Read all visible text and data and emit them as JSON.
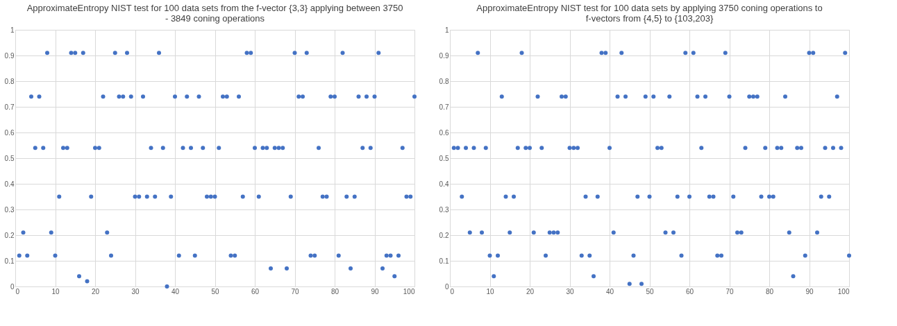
{
  "chart_data": [
    {
      "type": "scatter",
      "title": "ApproximateEntropy NIST test for 100 data sets from the f-vector {3,3} applying between 3750 - 3849 coning operations",
      "x": [
        1,
        2,
        3,
        4,
        5,
        6,
        7,
        8,
        9,
        10,
        11,
        12,
        13,
        14,
        15,
        16,
        17,
        18,
        19,
        20,
        21,
        22,
        23,
        24,
        25,
        26,
        27,
        28,
        29,
        30,
        31,
        32,
        33,
        34,
        35,
        36,
        37,
        38,
        39,
        40,
        41,
        42,
        43,
        44,
        45,
        46,
        47,
        48,
        49,
        50,
        51,
        52,
        53,
        54,
        55,
        56,
        57,
        58,
        59,
        60,
        61,
        62,
        63,
        64,
        65,
        66,
        67,
        68,
        69,
        70,
        71,
        72,
        73,
        74,
        75,
        76,
        77,
        78,
        79,
        80,
        81,
        82,
        83,
        84,
        85,
        86,
        87,
        88,
        89,
        90,
        91,
        92,
        93,
        94,
        95,
        96,
        97,
        98,
        99,
        100
      ],
      "series": [
        {
          "color": "#4472c4",
          "values": [
            0.12,
            0.21,
            0.12,
            0.74,
            0.54,
            0.74,
            0.54,
            0.91,
            0.21,
            0.12,
            0.35,
            0.54,
            0.54,
            0.91,
            0.91,
            0.04,
            0.91,
            0.02,
            0.35,
            0.54,
            0.54,
            0.74,
            0.21,
            0.12,
            0.91,
            0.74,
            0.74,
            0.91,
            0.74,
            0.35,
            0.35,
            0.74,
            0.35,
            0.54,
            0.35,
            0.91,
            0.54,
            0.0,
            0.35,
            0.74,
            0.12,
            0.54,
            0.74,
            0.54,
            0.12,
            0.74,
            0.54,
            0.35,
            0.35,
            0.35,
            0.54,
            0.74,
            0.74,
            0.12,
            0.12,
            0.74,
            0.35,
            0.91,
            0.91,
            0.54,
            0.35,
            0.54,
            0.54,
            0.07,
            0.54,
            0.54,
            0.54,
            0.07,
            0.35,
            0.91,
            0.74,
            0.74,
            0.91,
            0.12,
            0.12,
            0.54,
            0.35,
            0.35,
            0.74,
            0.74,
            0.12,
            0.91,
            0.35,
            0.07,
            0.35,
            0.74,
            0.54,
            0.74,
            0.54,
            0.74,
            0.91,
            0.07,
            0.12,
            0.12,
            0.04,
            0.12,
            0.54,
            0.35,
            0.35,
            0.74
          ]
        }
      ],
      "xlim": [
        0,
        100
      ],
      "xticks": [
        0,
        10,
        20,
        30,
        40,
        50,
        60,
        70,
        80,
        90,
        100
      ],
      "ylim": [
        0,
        1
      ],
      "yticks": [
        0,
        0.1,
        0.2,
        0.3,
        0.4,
        0.5,
        0.6,
        0.7,
        0.8,
        0.9,
        1
      ],
      "grid": true,
      "marker": "circle"
    },
    {
      "type": "scatter",
      "title": "ApproximateEntropy NIST test for 100 data sets by applying 3750 coning operations to f-vectors from {4,5} to {103,203}",
      "x": [
        1,
        2,
        3,
        4,
        5,
        6,
        7,
        8,
        9,
        10,
        11,
        12,
        13,
        14,
        15,
        16,
        17,
        18,
        19,
        20,
        21,
        22,
        23,
        24,
        25,
        26,
        27,
        28,
        29,
        30,
        31,
        32,
        33,
        34,
        35,
        36,
        37,
        38,
        39,
        40,
        41,
        42,
        43,
        44,
        45,
        46,
        47,
        48,
        49,
        50,
        51,
        52,
        53,
        54,
        55,
        56,
        57,
        58,
        59,
        60,
        61,
        62,
        63,
        64,
        65,
        66,
        67,
        68,
        69,
        70,
        71,
        72,
        73,
        74,
        75,
        76,
        77,
        78,
        79,
        80,
        81,
        82,
        83,
        84,
        85,
        86,
        87,
        88,
        89,
        90,
        91,
        92,
        93,
        94,
        95,
        96,
        97,
        98,
        99,
        100
      ],
      "series": [
        {
          "color": "#4472c4",
          "values": [
            0.54,
            0.54,
            0.35,
            0.54,
            0.21,
            0.54,
            0.91,
            0.21,
            0.54,
            0.12,
            0.04,
            0.12,
            0.74,
            0.35,
            0.21,
            0.35,
            0.54,
            0.91,
            0.54,
            0.54,
            0.21,
            0.74,
            0.54,
            0.12,
            0.21,
            0.21,
            0.21,
            0.74,
            0.74,
            0.54,
            0.54,
            0.54,
            0.12,
            0.35,
            0.12,
            0.04,
            0.35,
            0.91,
            0.91,
            0.54,
            0.21,
            0.74,
            0.91,
            0.74,
            0.01,
            0.12,
            0.35,
            0.01,
            0.74,
            0.35,
            0.74,
            0.54,
            0.54,
            0.21,
            0.74,
            0.21,
            0.35,
            0.12,
            0.91,
            0.35,
            0.91,
            0.74,
            0.54,
            0.74,
            0.35,
            0.35,
            0.12,
            0.12,
            0.91,
            0.74,
            0.35,
            0.21,
            0.21,
            0.54,
            0.74,
            0.74,
            0.74,
            0.35,
            0.54,
            0.35,
            0.35,
            0.54,
            0.54,
            0.74,
            0.21,
            0.04,
            0.54,
            0.54,
            0.12,
            0.91,
            0.91,
            0.21,
            0.35,
            0.54,
            0.35,
            0.54,
            0.74,
            0.54,
            0.91,
            0.12
          ]
        }
      ],
      "xlim": [
        0,
        100
      ],
      "xticks": [
        0,
        10,
        20,
        30,
        40,
        50,
        60,
        70,
        80,
        90,
        100
      ],
      "ylim": [
        0,
        1
      ],
      "yticks": [
        0,
        0.1,
        0.2,
        0.3,
        0.4,
        0.5,
        0.6,
        0.7,
        0.8,
        0.9,
        1
      ],
      "grid": true,
      "marker": "circle"
    }
  ]
}
